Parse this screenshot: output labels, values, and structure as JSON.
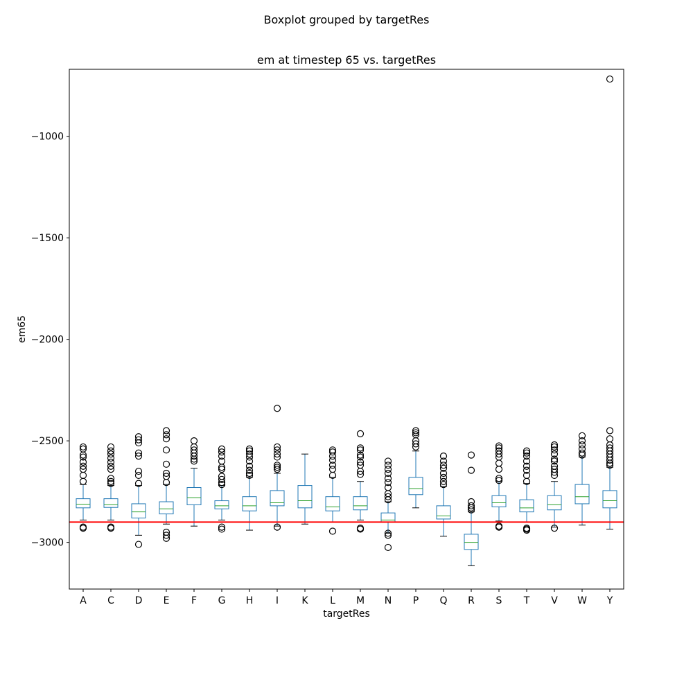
{
  "suptitle": "Boxplot grouped by targetRes",
  "chart_data": {
    "type": "box",
    "title": "em at timestep 65 vs. targetRes",
    "xlabel": "targetRes",
    "ylabel": "em65",
    "ylim": [
      -3230,
      -670
    ],
    "yticks": [
      -1000,
      -1500,
      -2000,
      -2500,
      -3000
    ],
    "ytick_labels": [
      "−1000",
      "−1500",
      "−2000",
      "−2500",
      "−3000"
    ],
    "reference_line": {
      "y": -2900,
      "color": "#ff0000"
    },
    "colors": {
      "box": "#1f77b4",
      "median": "#2ca02c",
      "whisker_cap": "#000000",
      "flier": "#000000"
    },
    "grid": false,
    "categories": [
      "A",
      "C",
      "D",
      "E",
      "F",
      "G",
      "H",
      "I",
      "K",
      "L",
      "M",
      "N",
      "P",
      "Q",
      "R",
      "S",
      "T",
      "V",
      "W",
      "Y"
    ],
    "boxes": [
      {
        "label": "A",
        "whislo": -2890,
        "q1": -2830,
        "med": -2812,
        "q3": -2785,
        "whishi": -2715,
        "fliers": [
          -2930,
          -2925,
          -2700,
          -2670,
          -2640,
          -2625,
          -2605,
          -2580,
          -2570,
          -2540,
          -2530
        ]
      },
      {
        "label": "C",
        "whislo": -2890,
        "q1": -2828,
        "med": -2815,
        "q3": -2785,
        "whishi": -2720,
        "fliers": [
          -2930,
          -2925,
          -2710,
          -2700,
          -2685,
          -2640,
          -2625,
          -2605,
          -2585,
          -2565,
          -2550,
          -2530
        ]
      },
      {
        "label": "D",
        "whislo": -2965,
        "q1": -2880,
        "med": -2850,
        "q3": -2810,
        "whishi": -2720,
        "fliers": [
          -3010,
          -2710,
          -2670,
          -2650,
          -2575,
          -2560,
          -2510,
          -2495,
          -2480
        ]
      },
      {
        "label": "E",
        "whislo": -2910,
        "q1": -2860,
        "med": -2835,
        "q3": -2800,
        "whishi": -2715,
        "fliers": [
          -2980,
          -2965,
          -2950,
          -2705,
          -2675,
          -2660,
          -2615,
          -2545,
          -2490,
          -2470,
          -2450
        ]
      },
      {
        "label": "F",
        "whislo": -2920,
        "q1": -2815,
        "med": -2780,
        "q3": -2730,
        "whishi": -2635,
        "fliers": [
          -2600,
          -2590,
          -2575,
          -2560,
          -2545,
          -2530,
          -2500
        ]
      },
      {
        "label": "G",
        "whislo": -2890,
        "q1": -2835,
        "med": -2820,
        "q3": -2795,
        "whishi": -2720,
        "fliers": [
          -2935,
          -2925,
          -2715,
          -2705,
          -2690,
          -2675,
          -2640,
          -2630,
          -2600,
          -2575,
          -2555,
          -2540
        ]
      },
      {
        "label": "H",
        "whislo": -2940,
        "q1": -2845,
        "med": -2820,
        "q3": -2775,
        "whishi": -2680,
        "fliers": [
          -2670,
          -2660,
          -2645,
          -2625,
          -2600,
          -2580,
          -2565,
          -2550,
          -2540
        ]
      },
      {
        "label": "I",
        "whislo": -2920,
        "q1": -2820,
        "med": -2805,
        "q3": -2745,
        "whishi": -2660,
        "fliers": [
          -2925,
          -2640,
          -2630,
          -2620,
          -2580,
          -2565,
          -2545,
          -2530,
          -2340
        ]
      },
      {
        "label": "K",
        "whislo": -2910,
        "q1": -2830,
        "med": -2795,
        "q3": -2720,
        "whishi": -2565,
        "fliers": []
      },
      {
        "label": "L",
        "whislo": -2900,
        "q1": -2845,
        "med": -2825,
        "q3": -2775,
        "whishi": -2680,
        "fliers": [
          -2945,
          -2670,
          -2640,
          -2620,
          -2595,
          -2575,
          -2555,
          -2545
        ]
      },
      {
        "label": "M",
        "whislo": -2890,
        "q1": -2840,
        "med": -2820,
        "q3": -2775,
        "whishi": -2700,
        "fliers": [
          -2935,
          -2930,
          -2665,
          -2650,
          -2620,
          -2605,
          -2580,
          -2570,
          -2545,
          -2535,
          -2465
        ]
      },
      {
        "label": "N",
        "whislo": -2955,
        "q1": -2900,
        "med": -2890,
        "q3": -2855,
        "whishi": -2800,
        "fliers": [
          -3025,
          -2965,
          -2955,
          -2790,
          -2775,
          -2760,
          -2730,
          -2705,
          -2685,
          -2660,
          -2640,
          -2620,
          -2600
        ]
      },
      {
        "label": "P",
        "whislo": -2830,
        "q1": -2765,
        "med": -2735,
        "q3": -2680,
        "whishi": -2550,
        "fliers": [
          -2530,
          -2515,
          -2500,
          -2470,
          -2460,
          -2450
        ]
      },
      {
        "label": "Q",
        "whislo": -2970,
        "q1": -2885,
        "med": -2870,
        "q3": -2820,
        "whishi": -2725,
        "fliers": [
          -2715,
          -2700,
          -2680,
          -2660,
          -2635,
          -2620,
          -2600,
          -2575
        ]
      },
      {
        "label": "R",
        "whislo": -3115,
        "q1": -3035,
        "med": -3000,
        "q3": -2960,
        "whishi": -2850,
        "fliers": [
          -2840,
          -2830,
          -2820,
          -2800,
          -2645,
          -2570
        ]
      },
      {
        "label": "S",
        "whislo": -2895,
        "q1": -2825,
        "med": -2805,
        "q3": -2770,
        "whishi": -2700,
        "fliers": [
          -2925,
          -2920,
          -2695,
          -2685,
          -2640,
          -2610,
          -2580,
          -2565,
          -2550,
          -2535,
          -2525
        ]
      },
      {
        "label": "T",
        "whislo": -2900,
        "q1": -2850,
        "med": -2830,
        "q3": -2790,
        "whishi": -2710,
        "fliers": [
          -2940,
          -2935,
          -2930,
          -2700,
          -2670,
          -2645,
          -2625,
          -2600,
          -2575,
          -2560,
          -2550
        ]
      },
      {
        "label": "V",
        "whislo": -2925,
        "q1": -2840,
        "med": -2815,
        "q3": -2770,
        "whishi": -2700,
        "fliers": [
          -2930,
          -2670,
          -2655,
          -2640,
          -2625,
          -2600,
          -2590,
          -2565,
          -2545,
          -2530,
          -2520
        ]
      },
      {
        "label": "W",
        "whislo": -2915,
        "q1": -2810,
        "med": -2775,
        "q3": -2715,
        "whishi": -2580,
        "fliers": [
          -2570,
          -2560,
          -2540,
          -2520,
          -2500,
          -2475
        ]
      },
      {
        "label": "Y",
        "whislo": -2935,
        "q1": -2830,
        "med": -2795,
        "q3": -2745,
        "whishi": -2630,
        "fliers": [
          -2620,
          -2610,
          -2595,
          -2580,
          -2565,
          -2550,
          -2535,
          -2520,
          -2490,
          -2450,
          -718
        ]
      }
    ]
  }
}
